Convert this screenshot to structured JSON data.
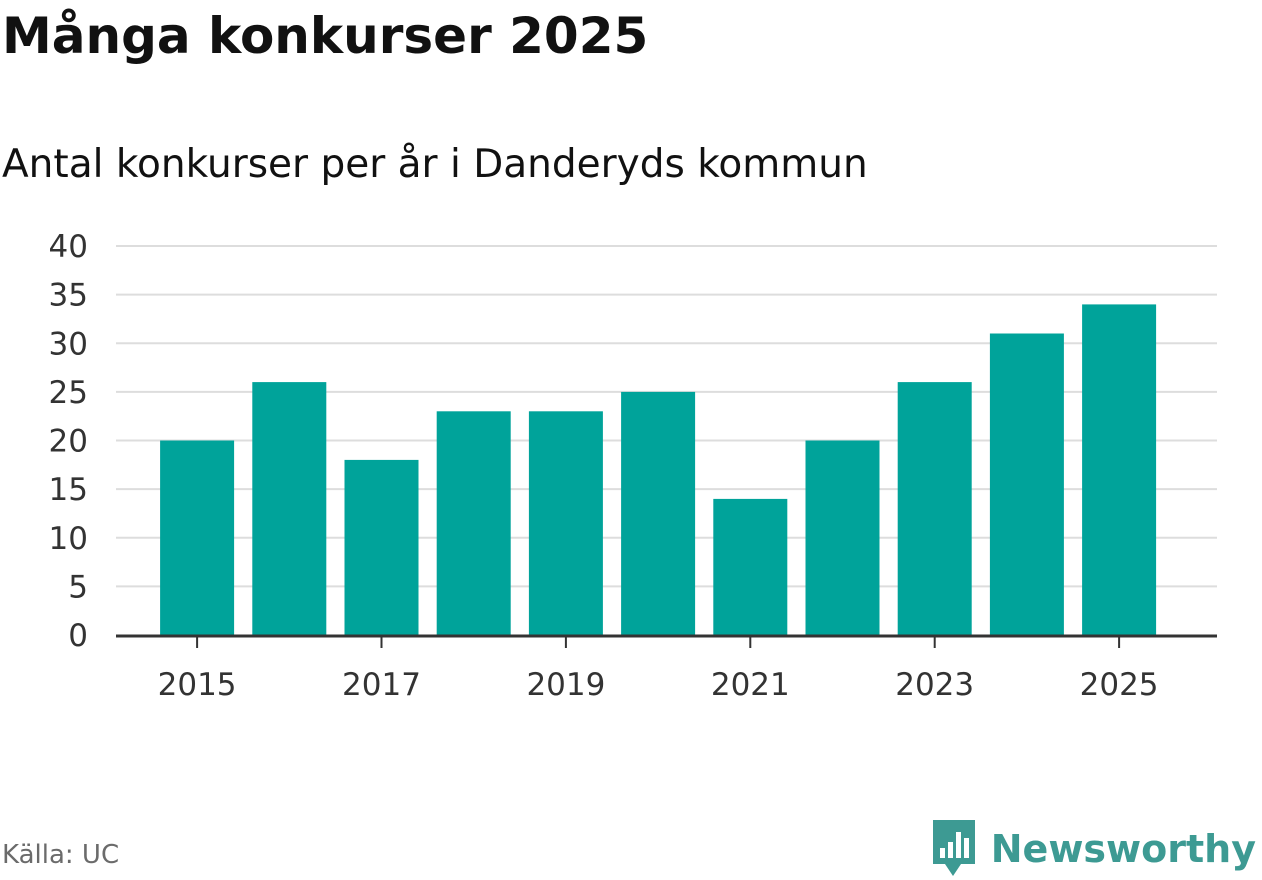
{
  "title": "Många konkurser 2025",
  "subtitle": "Antal konkurser per år i Danderyds kommun",
  "source": "Källa: UC",
  "brand": {
    "name": "Newsworthy",
    "icon": "newsworthy-logo-icon",
    "color": "#3d9a93"
  },
  "colors": {
    "bar": "#00a39a",
    "grid": "#dddddd",
    "axis": "#333333",
    "text": "#111111"
  },
  "chart_data": {
    "type": "bar",
    "categories": [
      "2015",
      "2016",
      "2017",
      "2018",
      "2019",
      "2020",
      "2021",
      "2022",
      "2023",
      "2024",
      "2025"
    ],
    "values": [
      20,
      26,
      18,
      23,
      23,
      25,
      14,
      20,
      26,
      31,
      34
    ],
    "x_tick_labels": [
      "2015",
      "2017",
      "2019",
      "2021",
      "2023",
      "2025"
    ],
    "y_ticks": [
      0,
      5,
      10,
      15,
      20,
      25,
      30,
      35,
      40
    ],
    "ylim": [
      0,
      40
    ],
    "grid": true,
    "xlabel": "",
    "ylabel": ""
  }
}
